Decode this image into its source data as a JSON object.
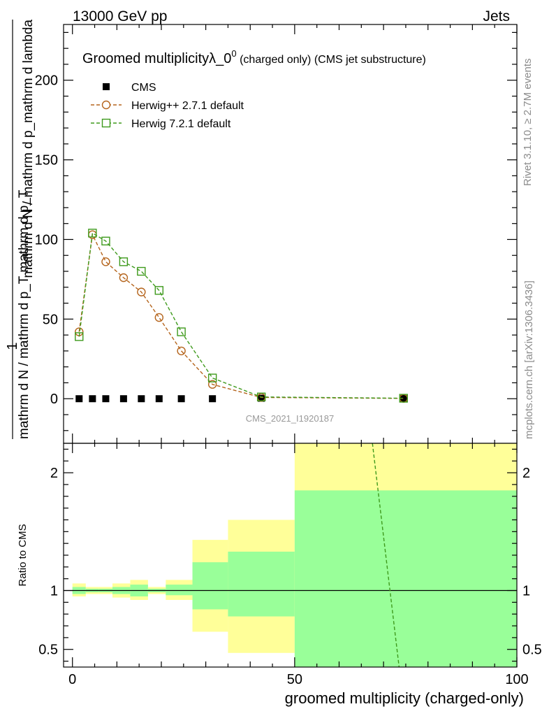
{
  "header": {
    "left": "13000 GeV pp",
    "right": "Jets"
  },
  "side_text": {
    "top": "Rivet 3.1.10, ≥ 2.7M events",
    "bottom": "mcplots.cern.ch [arXiv:1306.3436]"
  },
  "main_plot": {
    "title_main": "Groomed multiplicityλ_0",
    "title_sup": "0",
    "title_tail": " (charged only) (CMS jet substructure)",
    "watermark": "CMS_2021_I1920187",
    "ylabel_top": "1",
    "ylabel_num": "mathrm d N / mathrm d p_mathrm d lambda",
    "ylabel_den": "mathrm d N / mathrm d p_T mathrm d p_T"
  },
  "ratio_plot": {
    "ylabel": "Ratio to CMS"
  },
  "xlabel": "groomed multiplicity (charged-only)",
  "chart_data": {
    "type": "line",
    "xlim": [
      -2,
      100
    ],
    "x_ticks": [
      "0",
      "50",
      "100"
    ],
    "main": {
      "ylim": [
        -28,
        235
      ],
      "y_ticks": [
        "0",
        "50",
        "100",
        "150",
        "200"
      ],
      "y_tick_values": [
        0,
        50,
        100,
        150,
        200
      ]
    },
    "ratio": {
      "ylim": [
        0.35,
        2.25
      ],
      "y_ticks": [
        "0.5",
        "1",
        "2"
      ],
      "y_tick_values": [
        0.5,
        1,
        2
      ]
    },
    "legend": {
      "placement": "top-left",
      "entries": [
        "CMS",
        "Herwig++ 2.7.1 default",
        "Herwig 7.2.1 default"
      ]
    },
    "series": [
      {
        "name": "CMS",
        "marker": "filled-square",
        "color": "#000000",
        "x": [
          1.5,
          4.5,
          7.5,
          11.5,
          15.5,
          19.5,
          24.5,
          31.5,
          42.5,
          74.5
        ],
        "values": [
          0,
          0,
          0,
          0,
          0,
          0,
          0,
          0,
          0.3,
          0.1
        ]
      },
      {
        "name": "Herwig++ 2.7.1 default",
        "marker": "open-circle",
        "color": "#b5651d",
        "x": [
          1.5,
          4.5,
          7.5,
          11.5,
          15.5,
          19.5,
          24.5,
          31.5,
          42.5,
          74.5
        ],
        "values": [
          42,
          103,
          86,
          76,
          67,
          51,
          30,
          9,
          0.8,
          0.2
        ]
      },
      {
        "name": "Herwig 7.2.1 default",
        "marker": "open-square",
        "color": "#3e9a1c",
        "x": [
          1.5,
          4.5,
          7.5,
          11.5,
          15.5,
          19.5,
          24.5,
          31.5,
          42.5,
          74.5
        ],
        "values": [
          39,
          104,
          99,
          86,
          80,
          68,
          42,
          13,
          1.1,
          0.3
        ]
      }
    ],
    "uncertainty_bands": {
      "yellow": "#ffff99",
      "green": "#99ff99",
      "bins": [
        {
          "x0": 0,
          "x1": 3,
          "y_lo": 0.95,
          "y_hi": 1.06,
          "g_lo": 0.97,
          "g_hi": 1.03
        },
        {
          "x0": 3,
          "x1": 6,
          "y_lo": 0.97,
          "y_hi": 1.03,
          "g_lo": 0.985,
          "g_hi": 1.015
        },
        {
          "x0": 6,
          "x1": 9,
          "y_lo": 0.97,
          "y_hi": 1.03,
          "g_lo": 0.985,
          "g_hi": 1.015
        },
        {
          "x0": 9,
          "x1": 13,
          "y_lo": 0.94,
          "y_hi": 1.06,
          "g_lo": 0.97,
          "g_hi": 1.03
        },
        {
          "x0": 13,
          "x1": 17,
          "y_lo": 0.92,
          "y_hi": 1.09,
          "g_lo": 0.95,
          "g_hi": 1.05
        },
        {
          "x0": 17,
          "x1": 21,
          "y_lo": 0.97,
          "y_hi": 1.03,
          "g_lo": 0.985,
          "g_hi": 1.015
        },
        {
          "x0": 21,
          "x1": 27,
          "y_lo": 0.92,
          "y_hi": 1.09,
          "g_lo": 0.96,
          "g_hi": 1.05
        },
        {
          "x0": 27,
          "x1": 35,
          "y_lo": 0.65,
          "y_hi": 1.43,
          "g_lo": 0.84,
          "g_hi": 1.24
        },
        {
          "x0": 35,
          "x1": 50,
          "y_lo": 0.47,
          "y_hi": 1.6,
          "g_lo": 0.78,
          "g_hi": 1.33
        },
        {
          "x0": 50,
          "x1": 100,
          "y_lo": 0.35,
          "y_hi": 2.25,
          "g_lo": 0.35,
          "g_hi": 1.85
        }
      ]
    },
    "ratio_series": {
      "name": "Herwig 7.2.1 default",
      "color": "#3e9a1c",
      "x": [
        67.5,
        73.5
      ],
      "values": [
        2.25,
        0.35
      ]
    }
  }
}
